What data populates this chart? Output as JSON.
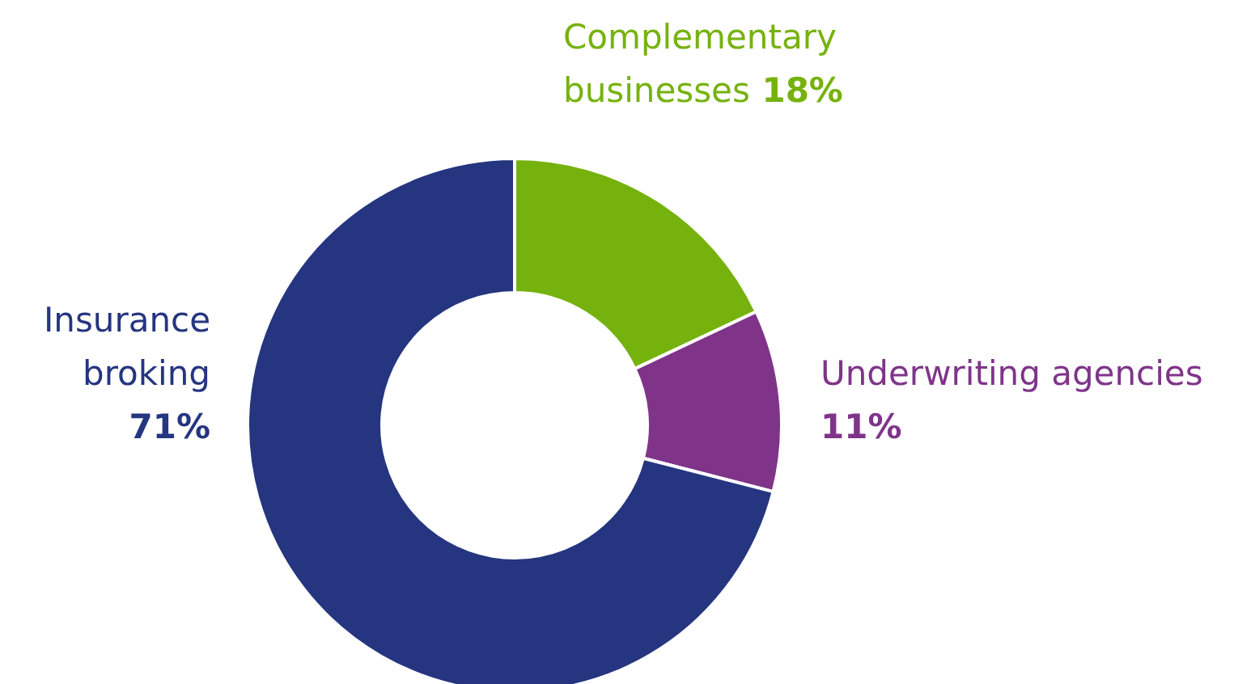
{
  "chart_data": {
    "type": "donut",
    "categories": [
      "Complementary businesses",
      "Underwriting agencies",
      "Insurance broking"
    ],
    "values": [
      18,
      11,
      71
    ],
    "value_labels": [
      "18%",
      "11%",
      "71%"
    ],
    "colors": [
      "#76b20e",
      "#7f3489",
      "#253580"
    ],
    "legend": false
  }
}
